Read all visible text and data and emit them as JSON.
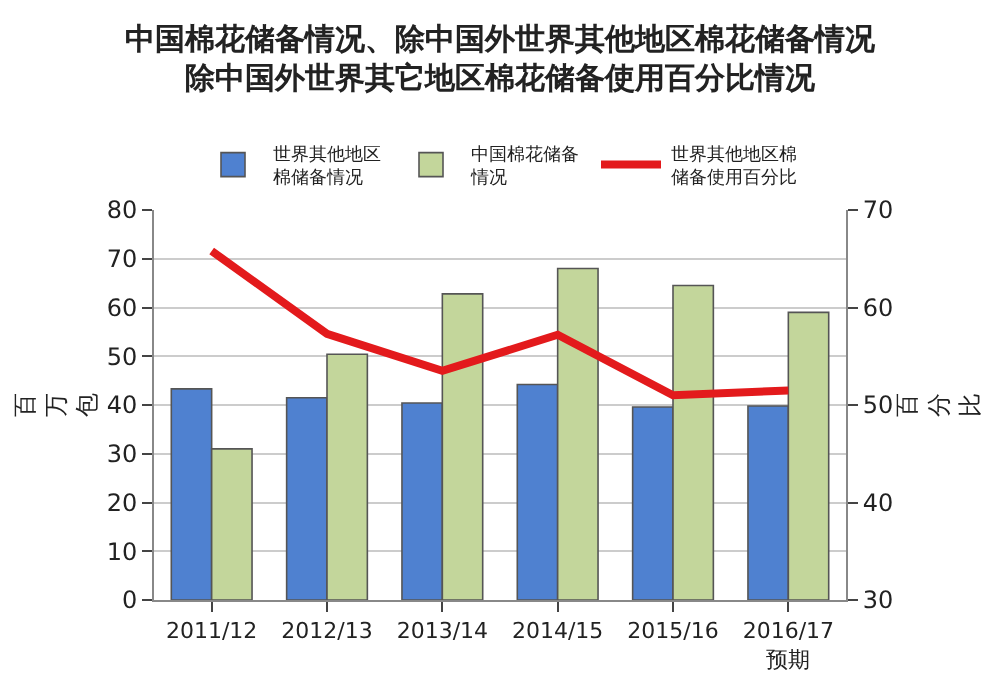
{
  "chart_data": {
    "type": "bar",
    "title": "中国棉花储备情况、除中国外世界其他地区棉花储备情况",
    "subtitle": "除中国外世界其它地区棉花储备使用百分比情况",
    "categories": [
      "2011/12",
      "2012/13",
      "2013/14",
      "2014/15",
      "2015/16",
      "2016/17\n预期"
    ],
    "series": [
      {
        "name": "世界其他地区棉储备情况",
        "color": "#4f81d0",
        "values": [
          43.3,
          41.5,
          40.4,
          44.2,
          39.6,
          39.8
        ]
      },
      {
        "name": "中国棉花储备情况",
        "color": "#c3d69b",
        "values": [
          31,
          50.4,
          62.8,
          68.0,
          64.5,
          59.0
        ]
      },
      {
        "name": "世界其他地区棉储备使用百分比",
        "color": "#e31a1c",
        "type": "line",
        "axis": "y2",
        "values": [
          65.8,
          57.3,
          53.5,
          57.2,
          51.0,
          51.5
        ]
      }
    ],
    "ylabel": "百万包",
    "y2label": "百分比",
    "ylim": [
      0,
      80
    ],
    "yticks": [
      0,
      10,
      20,
      30,
      40,
      50,
      60,
      70,
      80
    ],
    "y2lim": [
      30,
      70
    ],
    "y2ticks": [
      30,
      40,
      50,
      60,
      70
    ],
    "grid": "y",
    "legend": "top",
    "marker": "none",
    "line_style": "solid"
  }
}
